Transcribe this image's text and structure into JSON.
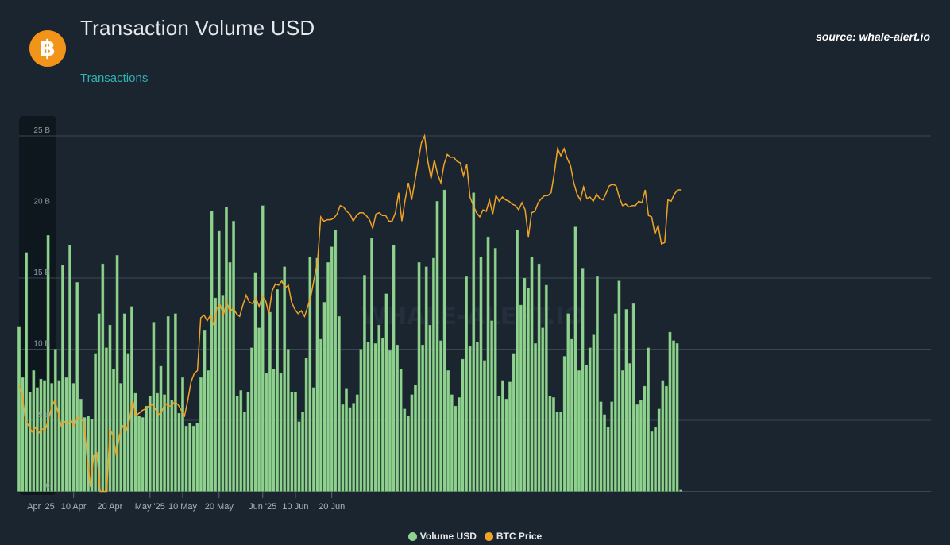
{
  "header": {
    "title": "Transaction Volume USD",
    "subtitle": "Transactions",
    "source": "source: whale-alert.io",
    "logo_glyph": "฿",
    "watermark": "WHALE-ALERT.IO"
  },
  "colors": {
    "background": "#1b2530",
    "bar": "#8fd18f",
    "bar_stroke": "#5e9a5e",
    "line": "#f0a326",
    "grid": "#3a4652",
    "logo": "#f2931a"
  },
  "legend": [
    {
      "label": "Volume USD",
      "color": "#8fd18f"
    },
    {
      "label": "BTC Price",
      "color": "#f0a326"
    }
  ],
  "chart_data": {
    "type": "bar",
    "x_start": "2025-03-26",
    "x_tick_labels": [
      {
        "date": "2025-04-01",
        "label": "Apr '25"
      },
      {
        "date": "2025-04-10",
        "label": "10 Apr"
      },
      {
        "date": "2025-04-20",
        "label": "20 Apr"
      },
      {
        "date": "2025-05-01",
        "label": "May '25"
      },
      {
        "date": "2025-05-10",
        "label": "10 May"
      },
      {
        "date": "2025-05-20",
        "label": "20 May"
      },
      {
        "date": "2025-06-01",
        "label": "Jun '25"
      },
      {
        "date": "2025-06-10",
        "label": "10 Jun"
      },
      {
        "date": "2025-06-20",
        "label": "20 Jun"
      }
    ],
    "y_ticks": [
      "0",
      "5 B",
      "10 B",
      "15 B",
      "20 B",
      "25 B"
    ],
    "ylim": [
      0,
      25
    ],
    "y_unit": "B",
    "grid": true,
    "legend_position": "bottom",
    "series": [
      {
        "name": "Volume USD",
        "type": "bar",
        "values": [
          11.6,
          8.0,
          16.8,
          7.0,
          8.5,
          7.3,
          7.9,
          7.8,
          18.0,
          7.6,
          10.0,
          7.8,
          15.9,
          8.0,
          17.3,
          7.6,
          14.7,
          6.5,
          5.2,
          5.3,
          5.1,
          9.7,
          12.5,
          16.0,
          10.1,
          11.7,
          8.6,
          16.6,
          7.6,
          12.5,
          9.7,
          13.0,
          6.9,
          5.3,
          5.2,
          6.0,
          6.7,
          11.9,
          6.9,
          8.8,
          6.8,
          12.3,
          6.4,
          12.5,
          5.5,
          8.0,
          4.6,
          4.8,
          4.6,
          4.8,
          8.0,
          11.3,
          8.5,
          19.7,
          13.6,
          18.3,
          13.8,
          20.0,
          16.1,
          19.0,
          6.7,
          7.1,
          5.6,
          7.0,
          10.1,
          15.4,
          11.5,
          20.1,
          8.3,
          12.6,
          8.6,
          14.2,
          8.3,
          15.8,
          10.0,
          7.0,
          7.0,
          4.9,
          5.6,
          9.4,
          16.5,
          7.3,
          16.4,
          10.7,
          13.3,
          16.1,
          17.2,
          18.4,
          12.3,
          6.1,
          7.2,
          5.9,
          6.2,
          6.8,
          10.0,
          15.2,
          10.5,
          17.8,
          10.4,
          11.7,
          10.8,
          13.9,
          9.9,
          17.3,
          10.3,
          8.6,
          5.8,
          5.3,
          6.8,
          7.5,
          16.1,
          10.3,
          15.8,
          11.7,
          16.4,
          20.4,
          10.6,
          21.2,
          8.5,
          6.8,
          6.0,
          6.6,
          9.3,
          15.1,
          10.2,
          21.0,
          10.5,
          16.5,
          9.2,
          17.9,
          12.0,
          17.1,
          6.7,
          7.8,
          6.5,
          7.7,
          9.7,
          18.4,
          13.1,
          15.0,
          14.3,
          16.5,
          10.4,
          16.0,
          11.5,
          14.5,
          6.7,
          6.6,
          5.6,
          5.6,
          9.5,
          12.5,
          10.7,
          18.6,
          8.5,
          15.7,
          8.9,
          10.1,
          11.0,
          15.1,
          6.3,
          5.4,
          4.5,
          6.3,
          12.5,
          14.8,
          8.5,
          12.8,
          9.0,
          13.2,
          6.1,
          6.4,
          7.4,
          10.1,
          4.2,
          4.5,
          5.8,
          7.8,
          7.4,
          11.2,
          10.6,
          10.4,
          0.1
        ]
      },
      {
        "name": "BTC Price",
        "type": "line",
        "values": [
          7.4,
          6.8,
          5.0,
          4.6,
          4.2,
          4.5,
          4.1,
          4.4,
          4.3,
          5.0,
          5.9,
          6.4,
          5.6,
          4.6,
          4.9,
          4.7,
          5.0,
          4.6,
          5.2,
          5.1,
          4.9,
          2.4,
          0.3,
          2.5,
          2.7,
          0.0,
          0.0,
          0.0,
          4.4,
          3.9,
          2.5,
          4.0,
          4.6,
          4.3,
          5.0,
          6.4,
          5.3,
          5.5,
          5.7,
          5.8,
          6.0,
          6.1,
          5.8,
          5.4,
          5.6,
          6.2,
          6.0,
          6.0,
          6.3,
          6.1,
          5.7,
          5.3,
          6.4,
          7.7,
          8.3,
          8.5,
          12.2,
          12.4,
          12.0,
          12.4,
          11.7,
          12.9,
          13.1,
          12.4,
          13.3,
          12.6,
          12.9,
          12.5,
          12.3,
          13.1,
          13.8,
          13.3,
          13.2,
          13.6,
          13.0,
          13.7,
          13.4,
          12.5,
          14.1,
          14.6,
          14.5,
          14.8,
          14.3,
          14.5,
          13.3,
          12.8,
          12.5,
          12.7,
          12.3,
          13.0,
          13.8,
          15.0,
          16.2,
          19.3,
          19.0,
          19.1,
          19.1,
          19.2,
          19.5,
          20.1,
          20.0,
          19.7,
          19.5,
          19.0,
          19.4,
          19.6,
          19.6,
          19.4,
          19.1,
          18.5,
          19.5,
          19.6,
          19.4,
          19.4,
          19.0,
          19.0,
          19.6,
          21.0,
          19.0,
          20.5,
          21.7,
          20.5,
          21.8,
          23.2,
          24.5,
          25.0,
          23.2,
          22.0,
          23.3,
          22.3,
          21.7,
          23.0,
          23.7,
          23.5,
          23.5,
          23.2,
          23.1,
          22.2,
          23.0,
          20.7,
          20.1,
          19.6,
          19.3,
          19.8,
          19.7,
          20.5,
          19.5,
          20.8,
          20.4,
          20.7,
          20.5,
          20.4,
          20.2,
          20.1,
          19.8,
          20.3,
          19.8,
          17.9,
          19.6,
          19.7,
          20.3,
          20.6,
          20.8,
          20.8,
          21.0,
          22.4,
          24.1,
          23.6,
          24.1,
          23.4,
          22.9,
          21.7,
          20.9,
          20.5,
          21.4,
          20.6,
          20.7,
          20.4,
          20.9,
          20.6,
          20.5,
          21.0,
          21.5,
          21.6,
          21.5,
          20.7,
          20.1,
          20.2,
          20.0,
          20.1,
          20.1,
          20.4,
          20.3,
          21.2,
          19.4,
          19.3,
          18.1,
          18.7,
          17.4,
          17.5,
          20.5,
          20.4,
          20.9,
          21.2,
          21.2
        ]
      }
    ]
  }
}
